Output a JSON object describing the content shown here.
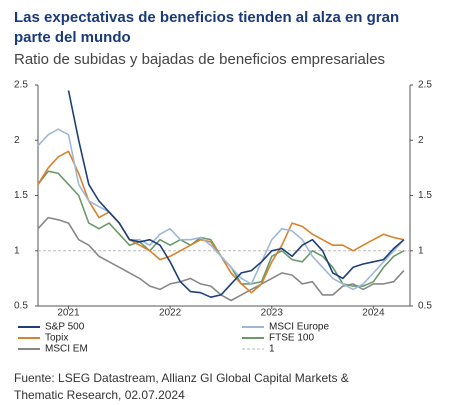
{
  "chart_data": {
    "type": "line",
    "title": [
      "Las expectativas de beneficios tienden al alza en gran",
      "parte del mundo"
    ],
    "subtitle": "Ratio de subidas y bajadas de beneficios empresariales",
    "source": [
      "Fuente: LSEG Datastream, Allianz GI Global Capital Markets &",
      "Thematic Research, 02.07.2024"
    ],
    "x": [
      2020.7,
      2020.8,
      2020.9,
      2021.0,
      2021.1,
      2021.2,
      2021.3,
      2021.4,
      2021.5,
      2021.6,
      2021.7,
      2021.8,
      2021.9,
      2022.0,
      2022.1,
      2022.2,
      2022.3,
      2022.4,
      2022.5,
      2022.6,
      2022.7,
      2022.8,
      2022.9,
      2023.0,
      2023.1,
      2023.2,
      2023.3,
      2023.4,
      2023.5,
      2023.6,
      2023.7,
      2023.8,
      2023.9,
      2024.0,
      2024.1,
      2024.2,
      2024.3
    ],
    "xlim": [
      2020.7,
      2024.36
    ],
    "xticks": [
      2021,
      2022,
      2023,
      2024
    ],
    "ylim": [
      0.5,
      2.5
    ],
    "yticks": [
      0.5,
      1.0,
      1.5,
      2.0,
      2.5
    ],
    "y2lim": [
      0.5,
      2.5
    ],
    "y2ticks": [
      0.5,
      1.0,
      1.5,
      2.0,
      2.5
    ],
    "series": [
      {
        "name": "S&P 500",
        "color": "#1f3f7a",
        "values": [
          null,
          null,
          null,
          2.45,
          2.0,
          1.6,
          1.45,
          1.35,
          1.25,
          1.1,
          1.08,
          1.1,
          1.05,
          0.9,
          0.72,
          0.63,
          0.62,
          0.58,
          0.6,
          0.7,
          0.8,
          0.82,
          0.9,
          1.0,
          1.02,
          0.95,
          1.05,
          1.1,
          1.0,
          0.8,
          0.75,
          0.85,
          0.88,
          0.9,
          0.92,
          1.02,
          1.1
        ]
      },
      {
        "name": "MSCI Europe",
        "color": "#9fb8d8",
        "values": [
          1.95,
          2.05,
          2.1,
          2.05,
          1.6,
          1.45,
          1.4,
          1.35,
          1.25,
          1.1,
          1.1,
          1.05,
          1.15,
          1.2,
          1.1,
          1.1,
          1.12,
          1.05,
          0.95,
          0.85,
          0.75,
          0.7,
          0.9,
          1.1,
          1.2,
          1.18,
          1.1,
          0.95,
          0.85,
          0.75,
          0.7,
          0.65,
          0.7,
          0.8,
          0.9,
          1.0,
          1.1
        ]
      },
      {
        "name": "Topix",
        "color": "#d9822b",
        "values": [
          1.6,
          1.75,
          1.85,
          1.9,
          1.7,
          1.45,
          1.3,
          1.35,
          1.25,
          1.1,
          1.05,
          1.0,
          0.92,
          0.95,
          1.0,
          1.05,
          1.1,
          1.08,
          0.95,
          0.8,
          0.7,
          0.62,
          0.7,
          0.9,
          1.05,
          1.25,
          1.22,
          1.15,
          1.1,
          1.05,
          1.05,
          1.0,
          1.05,
          1.1,
          1.15,
          1.12,
          1.1
        ]
      },
      {
        "name": "FTSE 100",
        "color": "#6a9a6a",
        "values": [
          1.6,
          1.72,
          1.7,
          1.6,
          1.5,
          1.25,
          1.2,
          1.25,
          1.15,
          1.05,
          1.08,
          1.0,
          1.1,
          1.05,
          1.1,
          1.05,
          1.12,
          1.1,
          0.95,
          0.85,
          0.7,
          0.7,
          0.72,
          0.95,
          1.0,
          0.92,
          0.9,
          1.0,
          0.95,
          0.85,
          0.7,
          0.68,
          0.68,
          0.72,
          0.85,
          0.95,
          1.0
        ]
      },
      {
        "name": "MSCI EM",
        "color": "#888888",
        "values": [
          1.2,
          1.3,
          1.28,
          1.25,
          1.1,
          1.05,
          0.95,
          0.9,
          0.85,
          0.8,
          0.75,
          0.68,
          0.65,
          0.7,
          0.72,
          0.75,
          0.7,
          0.68,
          0.6,
          0.55,
          0.6,
          0.65,
          0.7,
          0.75,
          0.8,
          0.78,
          0.7,
          0.72,
          0.6,
          0.6,
          0.68,
          0.7,
          0.65,
          0.7,
          0.7,
          0.72,
          0.82
        ]
      },
      {
        "name": "1",
        "color": "#bbbbbb",
        "dashed": true,
        "x": [
          2020.7,
          2024.36
        ],
        "values": [
          1,
          1
        ]
      }
    ]
  }
}
